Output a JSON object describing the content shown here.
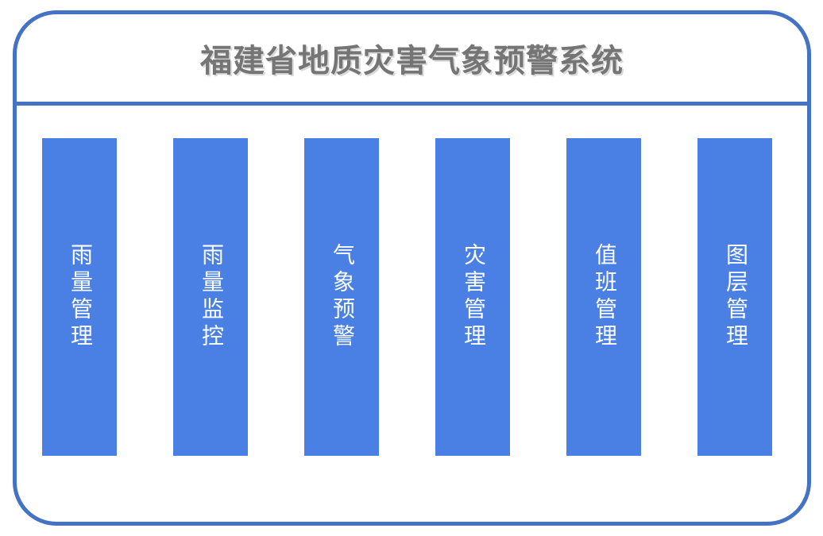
{
  "title": "福建省地质灾害气象预警系统",
  "colors": {
    "frame_border": "#4472c4",
    "divider": "#4472c4",
    "pillar_fill": "#4a80e4",
    "title_text": "#757575",
    "pillar_text": "#ffffff",
    "background": "#ffffff"
  },
  "modules": [
    {
      "label": "雨量管理"
    },
    {
      "label": "雨量监控"
    },
    {
      "label": "气象预警"
    },
    {
      "label": "灾害管理"
    },
    {
      "label": "值班管理"
    },
    {
      "label": "图层管理"
    }
  ]
}
